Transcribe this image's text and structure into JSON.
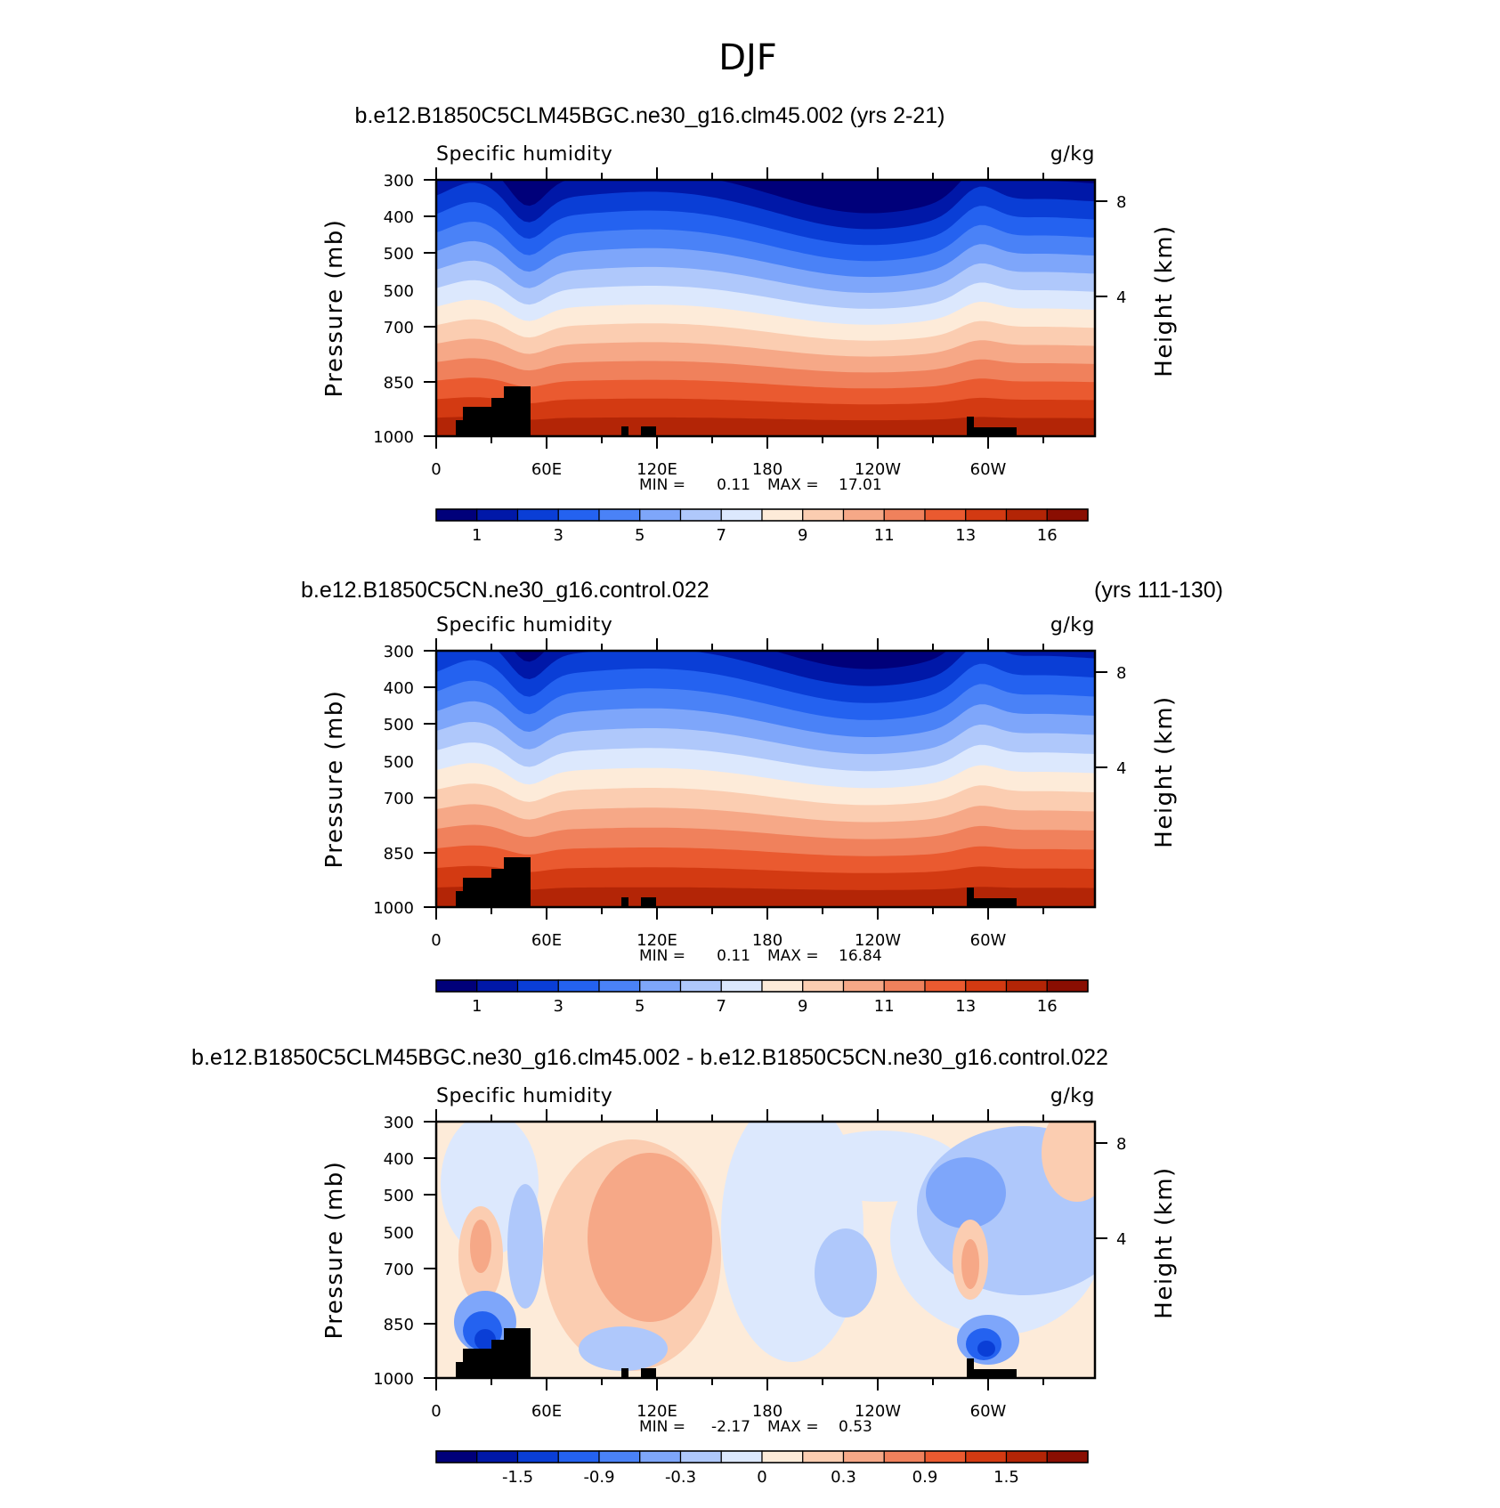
{
  "figure": {
    "title": "DJF"
  },
  "colors": {
    "abs_palette": [
      "#00007a",
      "#0018a8",
      "#0a3ed6",
      "#2462f0",
      "#4a82f7",
      "#7ea6fa",
      "#afc8fb",
      "#dce8fd",
      "#fdebd9",
      "#fbcdb1",
      "#f6a887",
      "#f0815c",
      "#ea5a30",
      "#d33a12",
      "#b32506",
      "#8a0e02"
    ],
    "diff_palette": [
      "#00007a",
      "#0018a8",
      "#0a3ed6",
      "#2462f0",
      "#4a82f7",
      "#7ea6fa",
      "#afc8fb",
      "#dce8fd",
      "#fdebd9",
      "#fbcdb1",
      "#f6a887",
      "#f0815c",
      "#ea5a30",
      "#d33a12",
      "#b32506",
      "#8a0e02"
    ],
    "terrain": "#000000"
  },
  "chart_data": [
    {
      "type": "heatmap",
      "case_title": "b.e12.B1850C5CLM45BGC.ne30_g16.clm45.002 (yrs 2-21)",
      "case_title_right": "",
      "left_label": "Specific humidity",
      "right_label": "g/kg",
      "ylabel": "Pressure (mb)",
      "ylabel2": "Height (km)",
      "xticks": [
        "0",
        "60E",
        "120E",
        "180",
        "120W",
        "60W"
      ],
      "yticks": [
        "300",
        "400",
        "500",
        "500",
        "700",
        "850",
        "1000"
      ],
      "y2ticks": [
        "8",
        "4"
      ],
      "min_label": "MIN =",
      "min_value": "0.11",
      "max_label": "MAX =",
      "max_value": "17.01",
      "colorbar_labels": [
        "1",
        "3",
        "5",
        "7",
        "9",
        "11",
        "13",
        "16"
      ],
      "kind": "abs",
      "dry_scale": 1.0
    },
    {
      "type": "heatmap",
      "case_title": "b.e12.B1850C5CN.ne30_g16.control.022",
      "case_title_right": "(yrs 111-130)",
      "left_label": "Specific humidity",
      "right_label": "g/kg",
      "ylabel": "Pressure (mb)",
      "ylabel2": "Height (km)",
      "xticks": [
        "0",
        "60E",
        "120E",
        "180",
        "120W",
        "60W"
      ],
      "yticks": [
        "300",
        "400",
        "500",
        "500",
        "700",
        "850",
        "1000"
      ],
      "y2ticks": [
        "8",
        "4"
      ],
      "min_label": "MIN =",
      "min_value": "0.11",
      "max_label": "MAX =",
      "max_value": "16.84",
      "colorbar_labels": [
        "1",
        "3",
        "5",
        "7",
        "9",
        "11",
        "13",
        "16"
      ],
      "kind": "abs",
      "dry_scale": 1.06
    },
    {
      "type": "heatmap",
      "case_title": "b.e12.B1850C5CLM45BGC.ne30_g16.clm45.002 - b.e12.B1850C5CN.ne30_g16.control.022",
      "case_title_right": "",
      "left_label": "Specific humidity",
      "right_label": "g/kg",
      "ylabel": "Pressure (mb)",
      "ylabel2": "Height (km)",
      "xticks": [
        "0",
        "60E",
        "120E",
        "180",
        "120W",
        "60W"
      ],
      "yticks": [
        "300",
        "400",
        "500",
        "500",
        "700",
        "850",
        "1000"
      ],
      "y2ticks": [
        "8",
        "4"
      ],
      "min_label": "MIN =",
      "min_value": "-2.17",
      "max_label": "MAX =",
      "max_value": "0.53",
      "colorbar_labels": [
        "-1.5",
        "-0.9",
        "-0.3",
        "0",
        "0.3",
        "0.9",
        "1.5"
      ],
      "kind": "diff",
      "dry_scale": 1.0
    }
  ]
}
